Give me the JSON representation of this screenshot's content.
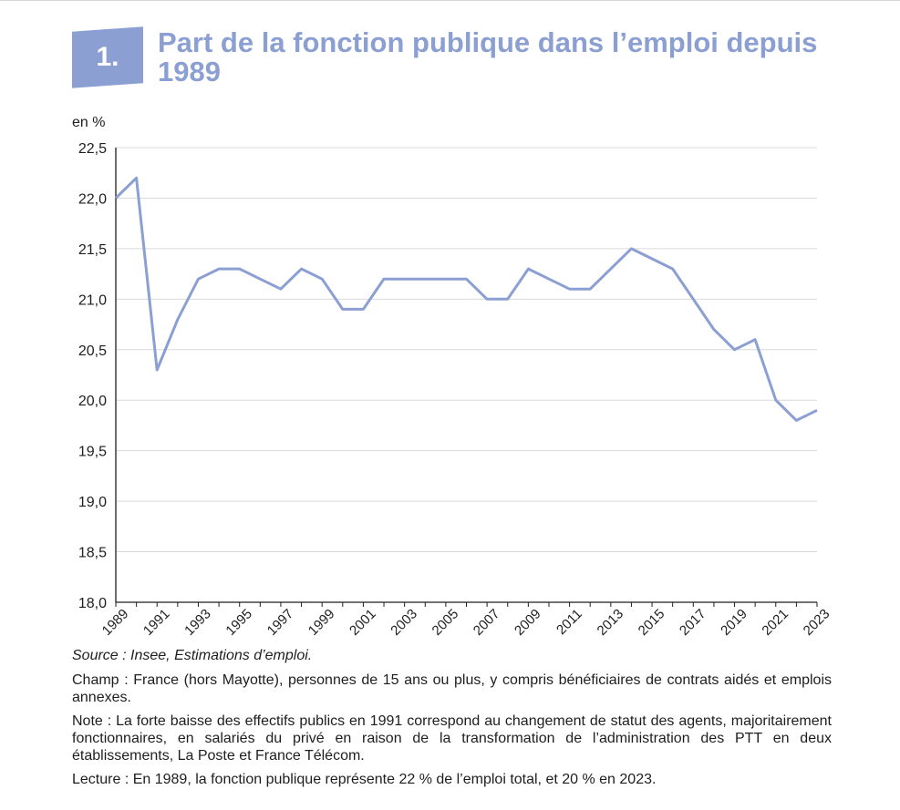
{
  "figure": {
    "number": "1.",
    "title": "Part de la fonction publique dans l’emploi depuis 1989"
  },
  "chart_data": {
    "type": "line",
    "unit_label": "en %",
    "x": [
      1989,
      1990,
      1991,
      1992,
      1993,
      1994,
      1995,
      1996,
      1997,
      1998,
      1999,
      2000,
      2001,
      2002,
      2003,
      2004,
      2005,
      2006,
      2007,
      2008,
      2009,
      2010,
      2011,
      2012,
      2013,
      2014,
      2015,
      2016,
      2017,
      2018,
      2019,
      2020,
      2021,
      2022,
      2023
    ],
    "series": [
      {
        "values": [
          22.0,
          22.2,
          20.3,
          20.8,
          21.2,
          21.3,
          21.3,
          21.2,
          21.1,
          21.3,
          21.2,
          20.9,
          20.9,
          21.2,
          21.2,
          21.2,
          21.2,
          21.2,
          21.0,
          21.0,
          21.3,
          21.2,
          21.1,
          21.1,
          21.3,
          21.5,
          21.4,
          21.3,
          21.0,
          20.7,
          20.5,
          20.6,
          20.0,
          19.8,
          19.9
        ],
        "color": "#8b9fd2"
      }
    ],
    "x_tick_labels": [
      "1989",
      "1991",
      "1993",
      "1995",
      "1997",
      "1999",
      "2001",
      "2003",
      "2005",
      "2007",
      "2009",
      "2011",
      "2013",
      "2015",
      "2017",
      "2019",
      "2021",
      "2023"
    ],
    "y_tick_values": [
      18.0,
      18.5,
      19.0,
      19.5,
      20.0,
      20.5,
      21.0,
      21.5,
      22.0,
      22.5
    ],
    "y_tick_labels": [
      "18,0",
      "18,5",
      "19,0",
      "19,5",
      "20,0",
      "20,5",
      "21,0",
      "21,5",
      "22,0",
      "22,5"
    ],
    "xlim": [
      1989,
      2023
    ],
    "ylim": [
      18.0,
      22.5
    ],
    "grid": "horizontal",
    "legend": "none"
  },
  "notes": {
    "source": "Source : Insee, Estimations d’emploi.",
    "champ": "Champ : France (hors Mayotte), personnes de 15 ans ou plus, y compris bénéficiaires de contrats aidés et emplois annexes.",
    "note": "Note : La forte baisse des effectifs publics en 1991 correspond au changement de statut des agents, majoritairement fonctionnaires, en salariés du privé en raison de la transformation de l’administration des PTT en deux établissements, La Poste et France Télécom.",
    "lecture": "Lecture : En 1989, la fonction publique représente 22 % de l’emploi total, et 20 % en 2023."
  }
}
